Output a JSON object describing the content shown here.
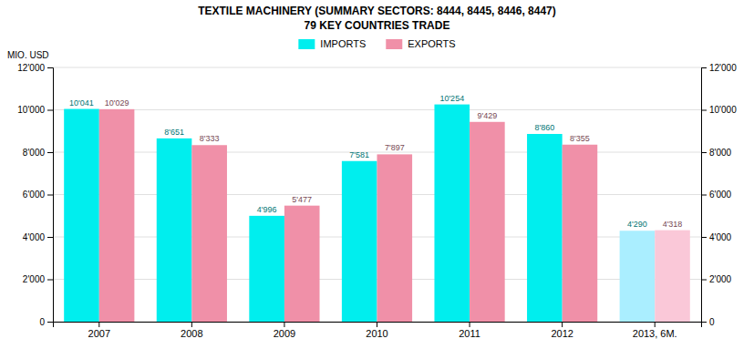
{
  "chart_data": {
    "type": "bar",
    "title": "TEXTILE MACHINERY (SUMMARY SECTORS: 8444, 8445, 8446, 8447)",
    "subtitle": "79 KEY COUNTRIES TRADE",
    "ylabel": "MIO. USD",
    "categories": [
      "2007",
      "2008",
      "2009",
      "2010",
      "2011",
      "2012",
      "2013, 6M."
    ],
    "series": [
      {
        "name": "IMPORTS",
        "color": "#00EEEE",
        "colors": [
          "#00EEEE",
          "#00EEEE",
          "#00EEEE",
          "#00EEEE",
          "#00EEEE",
          "#00EEEE",
          "#AAEEFF"
        ],
        "values": [
          10041,
          8651,
          4996,
          7581,
          10254,
          8860,
          4290
        ],
        "value_labels": [
          "10'041",
          "8'651",
          "4'996",
          "7'581",
          "10'254",
          "8'860",
          "4'290"
        ]
      },
      {
        "name": "EXPORTS",
        "color": "#F090A8",
        "colors": [
          "#F090A8",
          "#F090A8",
          "#F090A8",
          "#F090A8",
          "#F090A8",
          "#F090A8",
          "#FAC8D8"
        ],
        "values": [
          10029,
          8333,
          5477,
          7897,
          9429,
          8355,
          4318
        ],
        "value_labels": [
          "10'029",
          "8'333",
          "5'477",
          "7'897",
          "9'429",
          "8'355",
          "4'318"
        ]
      }
    ],
    "ylim": [
      0,
      12000
    ],
    "yticks": [
      0,
      {
        "value": 2000,
        "label": "2'000"
      },
      {
        "value": 4000,
        "label": "4'000"
      },
      {
        "value": 6000,
        "label": "6'000"
      },
      {
        "value": 8000,
        "label": "8'000"
      },
      {
        "value": 10000,
        "label": "10'000"
      },
      {
        "value": 12000,
        "label": "12'000"
      }
    ],
    "y2lim": [
      0,
      12000
    ],
    "y2ticks": [
      0,
      {
        "value": 2000,
        "label": "2'000"
      },
      {
        "value": 4000,
        "label": "4'000"
      },
      {
        "value": 6000,
        "label": "6'000"
      },
      {
        "value": 8000,
        "label": "8'000"
      },
      {
        "value": 10000,
        "label": "10'000"
      },
      {
        "value": 12000,
        "label": "12'000"
      }
    ],
    "grid": true,
    "legend": "top",
    "data_labels": true
  }
}
